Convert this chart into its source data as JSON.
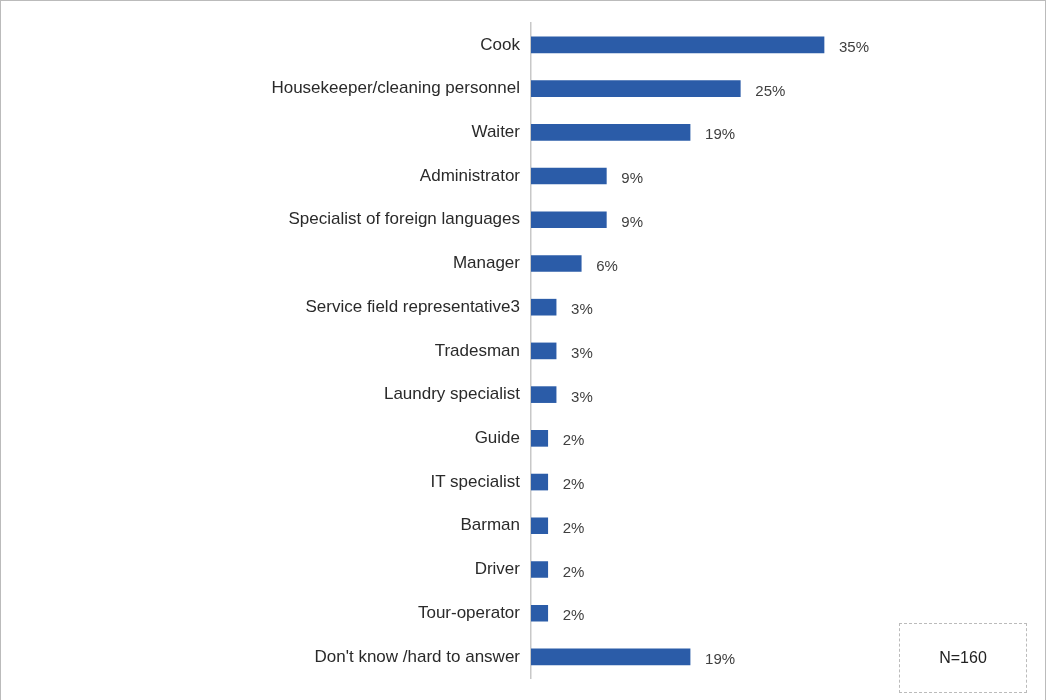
{
  "chart_data": {
    "type": "bar",
    "orientation": "horizontal",
    "categories": [
      "Cook",
      "Housekeeper/cleaning personnel",
      "Waiter",
      "Administrator",
      "Specialist of foreign languages",
      "Manager",
      "Service field representative3",
      "Tradesman",
      "Laundry specialist",
      "Guide",
      "IT specialist",
      "Barman",
      "Driver",
      "Tour-operator",
      "Don't know /hard to answer"
    ],
    "values": [
      35,
      25,
      19,
      9,
      9,
      6,
      3,
      3,
      3,
      2,
      2,
      2,
      2,
      2,
      19
    ],
    "value_labels": [
      "35%",
      "25%",
      "19%",
      "9%",
      "9%",
      "6%",
      "3%",
      "3%",
      "3%",
      "2%",
      "2%",
      "2%",
      "2%",
      "2%",
      "19%"
    ],
    "color": "#2b5ca8",
    "annotations": [
      "N=160"
    ]
  }
}
